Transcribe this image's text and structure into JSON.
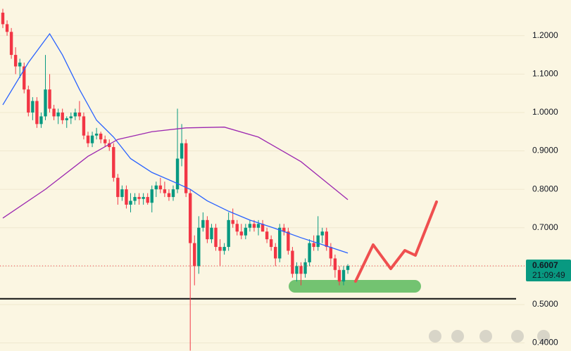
{
  "chart_data": {
    "type": "candlestick",
    "up_color": "#089981",
    "down_color": "#f23645",
    "candles": [
      [
        1.26,
        1.27,
        1.22,
        1.23
      ],
      [
        1.23,
        1.24,
        1.2,
        1.21
      ],
      [
        1.21,
        1.22,
        1.14,
        1.15
      ],
      [
        1.15,
        1.17,
        1.1,
        1.12
      ],
      [
        1.12,
        1.14,
        1.09,
        1.13
      ],
      [
        1.12,
        1.13,
        1.05,
        1.06
      ],
      [
        1.06,
        1.07,
        0.99,
        1.0
      ],
      [
        1.0,
        1.04,
        0.98,
        1.03
      ],
      [
        1.03,
        1.04,
        0.96,
        0.97
      ],
      [
        0.97,
        1.0,
        0.96,
        0.99
      ],
      [
        0.99,
        1.15,
        0.98,
        1.06
      ],
      [
        1.06,
        1.1,
        1.0,
        1.01
      ],
      [
        1.01,
        1.02,
        0.98,
        0.99
      ],
      [
        0.99,
        1.01,
        0.97,
        1.0
      ],
      [
        1.0,
        1.01,
        0.97,
        0.98
      ],
      [
        0.98,
        0.99,
        0.96,
        0.985
      ],
      [
        0.985,
        1.0,
        0.97,
        0.99
      ],
      [
        0.99,
        1.01,
        0.98,
        1.0
      ],
      [
        1.0,
        1.03,
        0.98,
        0.99
      ],
      [
        0.99,
        1.0,
        0.93,
        0.94
      ],
      [
        0.94,
        0.95,
        0.91,
        0.92
      ],
      [
        0.92,
        0.95,
        0.91,
        0.94
      ],
      [
        0.94,
        0.96,
        0.93,
        0.945
      ],
      [
        0.945,
        0.95,
        0.92,
        0.93
      ],
      [
        0.93,
        0.94,
        0.91,
        0.92
      ],
      [
        0.92,
        0.93,
        0.9,
        0.91
      ],
      [
        0.91,
        0.92,
        0.82,
        0.83
      ],
      [
        0.83,
        0.84,
        0.76,
        0.78
      ],
      [
        0.78,
        0.81,
        0.77,
        0.8
      ],
      [
        0.8,
        0.81,
        0.75,
        0.76
      ],
      [
        0.76,
        0.79,
        0.74,
        0.77
      ],
      [
        0.77,
        0.79,
        0.76,
        0.78
      ],
      [
        0.78,
        0.79,
        0.76,
        0.775
      ],
      [
        0.775,
        0.79,
        0.76,
        0.78
      ],
      [
        0.78,
        0.79,
        0.76,
        0.765
      ],
      [
        0.765,
        0.81,
        0.74,
        0.8
      ],
      [
        0.8,
        0.82,
        0.78,
        0.81
      ],
      [
        0.81,
        0.83,
        0.79,
        0.8
      ],
      [
        0.8,
        0.82,
        0.78,
        0.79
      ],
      [
        0.79,
        0.8,
        0.77,
        0.78
      ],
      [
        0.78,
        0.81,
        0.77,
        0.8
      ],
      [
        0.8,
        1.01,
        0.79,
        0.88
      ],
      [
        0.88,
        0.97,
        0.86,
        0.92
      ],
      [
        0.92,
        0.93,
        0.78,
        0.79
      ],
      [
        0.79,
        0.8,
        0.38,
        0.66
      ],
      [
        0.66,
        0.68,
        0.55,
        0.6
      ],
      [
        0.6,
        0.73,
        0.58,
        0.7
      ],
      [
        0.7,
        0.74,
        0.69,
        0.72
      ],
      [
        0.72,
        0.73,
        0.66,
        0.67
      ],
      [
        0.67,
        0.71,
        0.66,
        0.7
      ],
      [
        0.7,
        0.71,
        0.64,
        0.65
      ],
      [
        0.65,
        0.67,
        0.6,
        0.64
      ],
      [
        0.64,
        0.66,
        0.63,
        0.65
      ],
      [
        0.65,
        0.74,
        0.64,
        0.72
      ],
      [
        0.72,
        0.75,
        0.7,
        0.71
      ],
      [
        0.71,
        0.72,
        0.68,
        0.69
      ],
      [
        0.69,
        0.71,
        0.67,
        0.68
      ],
      [
        0.68,
        0.71,
        0.67,
        0.7
      ],
      [
        0.7,
        0.72,
        0.69,
        0.71
      ],
      [
        0.71,
        0.72,
        0.69,
        0.7
      ],
      [
        0.7,
        0.72,
        0.68,
        0.71
      ],
      [
        0.71,
        0.72,
        0.69,
        0.69
      ],
      [
        0.69,
        0.7,
        0.66,
        0.67
      ],
      [
        0.67,
        0.68,
        0.64,
        0.65
      ],
      [
        0.65,
        0.66,
        0.6,
        0.62
      ],
      [
        0.62,
        0.71,
        0.61,
        0.7
      ],
      [
        0.7,
        0.71,
        0.68,
        0.69
      ],
      [
        0.69,
        0.7,
        0.63,
        0.64
      ],
      [
        0.64,
        0.65,
        0.57,
        0.58
      ],
      [
        0.58,
        0.61,
        0.56,
        0.6
      ],
      [
        0.6,
        0.61,
        0.55,
        0.58
      ],
      [
        0.58,
        0.62,
        0.57,
        0.61
      ],
      [
        0.61,
        0.67,
        0.6,
        0.66
      ],
      [
        0.66,
        0.68,
        0.64,
        0.65
      ],
      [
        0.65,
        0.73,
        0.64,
        0.68
      ],
      [
        0.68,
        0.7,
        0.66,
        0.69
      ],
      [
        0.69,
        0.7,
        0.64,
        0.65
      ],
      [
        0.65,
        0.66,
        0.6,
        0.62
      ],
      [
        0.62,
        0.63,
        0.57,
        0.59
      ],
      [
        0.59,
        0.6,
        0.55,
        0.56
      ],
      [
        0.56,
        0.6,
        0.55,
        0.59
      ],
      [
        0.59,
        0.605,
        0.58,
        0.6007
      ]
    ],
    "lines": [
      {
        "color": "#2962ff",
        "x": [
          0,
          6,
          11,
          14,
          18,
          22,
          26,
          30,
          35,
          40,
          44,
          48,
          53,
          58,
          64,
          70,
          75,
          81
        ],
        "values": [
          1.02,
          1.13,
          1.205,
          1.15,
          1.06,
          0.98,
          0.936,
          0.88,
          0.844,
          0.82,
          0.8,
          0.77,
          0.743,
          0.72,
          0.698,
          0.674,
          0.656,
          0.634
        ]
      },
      {
        "color": "#9c27b0",
        "x": [
          0,
          10,
          20,
          27,
          35,
          43,
          52,
          60,
          70,
          81
        ],
        "values": [
          0.725,
          0.8,
          0.886,
          0.93,
          0.95,
          0.96,
          0.962,
          0.936,
          0.872,
          0.773
        ]
      }
    ],
    "ylim": [
      0.379,
      1.293
    ],
    "yticks": [
      {
        "value": 0.4,
        "label": "0.4000"
      },
      {
        "value": 0.5,
        "label": "0.5000"
      },
      {
        "value": 0.6,
        "label": "0.6000"
      },
      {
        "value": 0.7,
        "label": "0.7000"
      },
      {
        "value": 0.8,
        "label": "0.8000"
      },
      {
        "value": 0.9,
        "label": "0.9000"
      },
      {
        "value": 1.0,
        "label": "1.0000"
      },
      {
        "value": 1.1,
        "label": "1.1000"
      },
      {
        "value": 1.2,
        "label": "1.2000"
      }
    ],
    "grid": true,
    "last_price": 0.6007,
    "countdown": "21:09:49",
    "support": 0.515,
    "zone": [
      0.531,
      0.564
    ]
  }
}
